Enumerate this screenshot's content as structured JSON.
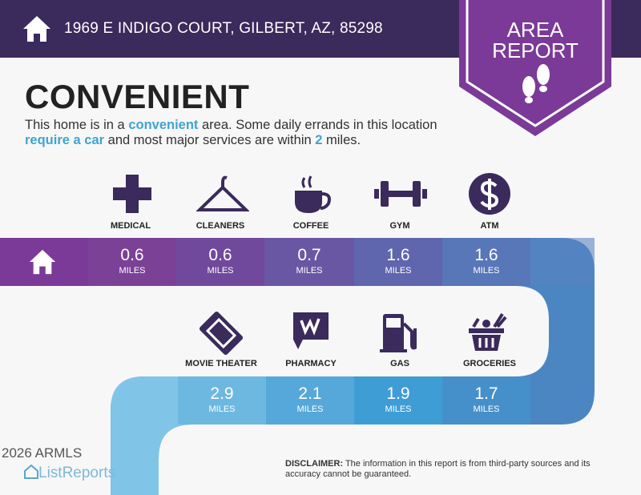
{
  "header": {
    "address": "1969 E INDIGO COURT, GILBERT, AZ, 85298",
    "home_icon": "house-icon"
  },
  "badge": {
    "line1": "AREA",
    "line2": "REPORT",
    "icon": "footprints-icon",
    "color": "#7b3a97"
  },
  "title": "CONVENIENT",
  "description": {
    "p1": "This home is in a ",
    "h1": "convenient",
    "p2": " area. Some daily errands in this location ",
    "h2": "require a car",
    "p3": " and most major services are within ",
    "h3": "2",
    "p4": " miles."
  },
  "colors": {
    "header": "#3b2a5c",
    "highlight": "#3fa4cf"
  },
  "row1": [
    {
      "label": "MEDICAL",
      "distance": "0.6",
      "unit": "MILES",
      "icon": "medical-cross-icon",
      "color": "#7a4197"
    },
    {
      "label": "CLEANERS",
      "distance": "0.6",
      "unit": "MILES",
      "icon": "hanger-icon",
      "color": "#70499c"
    },
    {
      "label": "COFFEE",
      "distance": "0.7",
      "unit": "MILES",
      "icon": "coffee-cup-icon",
      "color": "#6a57a4"
    },
    {
      "label": "GYM",
      "distance": "1.6",
      "unit": "MILES",
      "icon": "dumbbell-icon",
      "color": "#5f66ad"
    },
    {
      "label": "ATM",
      "distance": "1.6",
      "unit": "MILES",
      "icon": "dollar-icon",
      "color": "#5877b8"
    }
  ],
  "row2": [
    {
      "label": "MOVIE THEATER",
      "distance": "2.9",
      "unit": "MILES",
      "icon": "ticket-icon",
      "color": "#6db8e0"
    },
    {
      "label": "PHARMACY",
      "distance": "2.1",
      "unit": "MILES",
      "icon": "walgreens-icon",
      "color": "#55a8d9"
    },
    {
      "label": "GAS",
      "distance": "1.9",
      "unit": "MILES",
      "icon": "gas-pump-icon",
      "color": "#3f9dd6"
    },
    {
      "label": "GROCERIES",
      "distance": "1.7",
      "unit": "MILES",
      "icon": "grocery-basket-icon",
      "color": "#4590cb"
    }
  ],
  "footer": {
    "logo": "ListReports",
    "watermark": "2026 ARMLS",
    "disclaimer_label": "DISCLAIMER:",
    "disclaimer_text": " The information in this report is from third-party sources and its accuracy cannot be guaranteed."
  }
}
